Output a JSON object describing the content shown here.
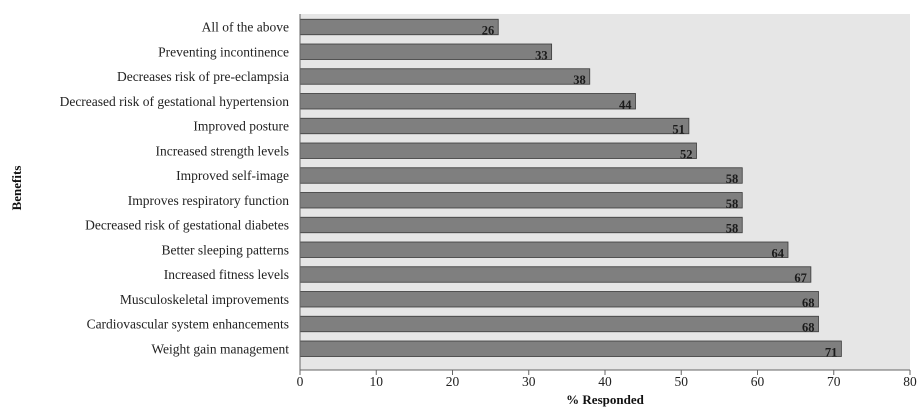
{
  "chart_data": {
    "type": "bar",
    "orientation": "horizontal",
    "categories": [
      "All of the above",
      "Preventing incontinence",
      "Decreases risk of pre-eclampsia",
      "Decreased risk of gestational hypertension",
      "Improved posture",
      "Increased strength levels",
      "Improved self-image",
      "Improves respiratory function",
      "Decreased risk of gestational diabetes",
      "Better sleeping patterns",
      "Increased fitness levels",
      "Musculoskeletal improvements",
      "Cardiovascular system enhancements",
      "Weight gain management"
    ],
    "values": [
      26,
      33,
      38,
      44,
      51,
      52,
      58,
      58,
      58,
      64,
      67,
      68,
      68,
      71
    ],
    "xlabel": "% Responded",
    "ylabel": "Benefits",
    "xlim": [
      0,
      80
    ],
    "xticks": [
      0,
      10,
      20,
      30,
      40,
      50,
      60,
      70,
      80
    ],
    "grid": false,
    "colors": {
      "bar": "#7f7f7f",
      "bar_edge": "#3a3a3a",
      "plot_background": "#e6e6e6"
    }
  }
}
